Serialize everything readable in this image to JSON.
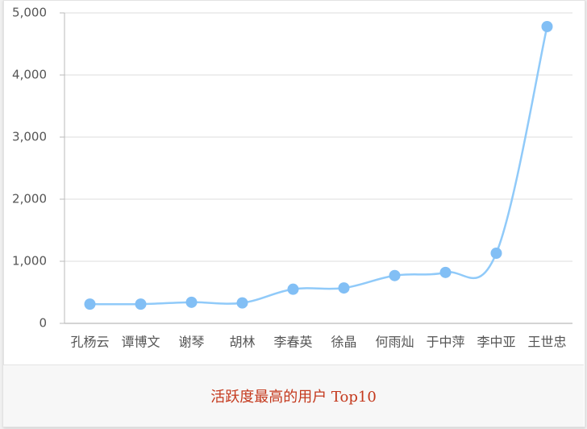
{
  "chart_data": {
    "type": "line",
    "title": "活跃度最高的用户 Top10",
    "categories": [
      "孔杨云",
      "谭博文",
      "谢琴",
      "胡林",
      "李春英",
      "徐晶",
      "何雨灿",
      "于中萍",
      "李中亚",
      "王世忠"
    ],
    "values": [
      310,
      310,
      340,
      330,
      550,
      570,
      770,
      820,
      1130,
      4780
    ],
    "color": "#90caf9",
    "marker_color": "#82bff5",
    "ylim": [
      0,
      5000
    ],
    "yticks": [
      0,
      {
        "value": 1000,
        "label": "1,000"
      },
      {
        "value": 2000,
        "label": "2,000"
      },
      {
        "value": 3000,
        "label": "3,000"
      },
      {
        "value": 4000,
        "label": "4,000"
      },
      {
        "value": 5000,
        "label": "5,000"
      }
    ],
    "grid": true
  }
}
